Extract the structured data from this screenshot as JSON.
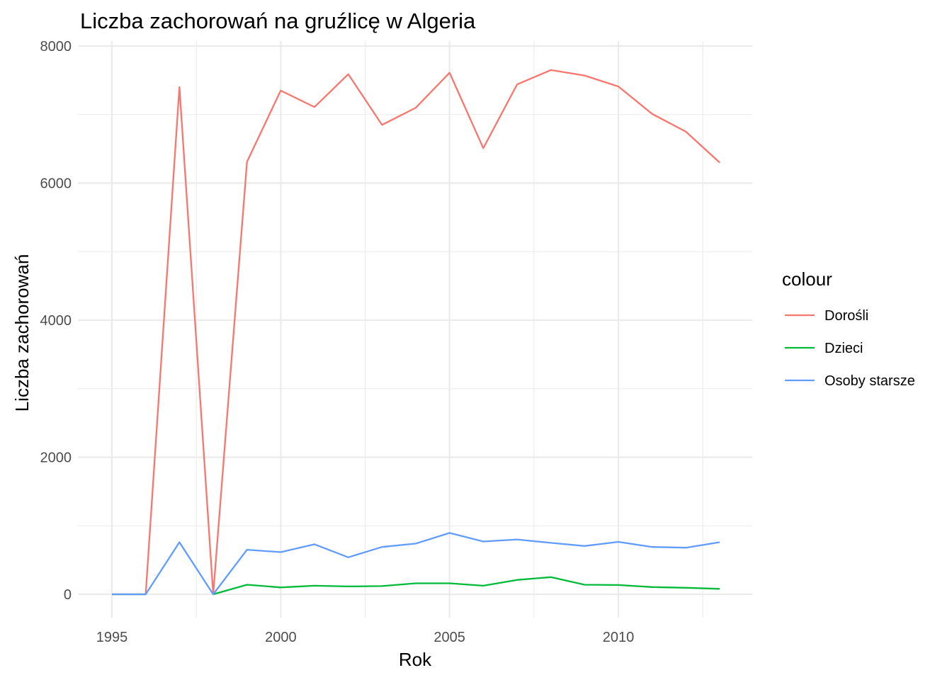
{
  "chart_data": {
    "type": "line",
    "title": "Liczba zachorowań na gruźlicę w Algeria",
    "xlabel": "Rok",
    "ylabel": "Liczba zachorowań",
    "x": [
      1995,
      1996,
      1997,
      1998,
      1999,
      2000,
      2001,
      2002,
      2003,
      2004,
      2005,
      2006,
      2007,
      2008,
      2009,
      2010,
      2011,
      2012,
      2013
    ],
    "xlim": [
      1994.9,
      2013.6
    ],
    "ylim": [
      -300,
      8000
    ],
    "x_ticks": [
      1995,
      2000,
      2005,
      2010
    ],
    "x_tick_labels": [
      "1995",
      "2000",
      "2005",
      "2010"
    ],
    "x_minor_ticks": [
      1997.5,
      2002.5,
      2007.5,
      2012.5
    ],
    "y_ticks": [
      0,
      2000,
      4000,
      6000,
      8000
    ],
    "y_tick_labels": [
      "0",
      "2000",
      "4000",
      "6000",
      "8000"
    ],
    "y_minor_ticks": [
      1000,
      3000,
      5000,
      7000
    ],
    "grid": true,
    "legend": {
      "title": "colour",
      "position": "right"
    },
    "series": [
      {
        "name": "Dorośli",
        "color": "#F8766D",
        "values": [
          0,
          0,
          7400,
          0,
          6310,
          7350,
          7110,
          7590,
          6850,
          7100,
          7610,
          6510,
          7440,
          7650,
          7570,
          7410,
          7010,
          6750,
          6300
        ]
      },
      {
        "name": "Dzieci",
        "color": "#00BA38",
        "values": [
          0,
          0,
          null,
          0,
          140,
          100,
          125,
          115,
          120,
          160,
          160,
          125,
          210,
          250,
          140,
          135,
          105,
          95,
          80
        ]
      },
      {
        "name": "Osoby starsze",
        "color": "#619CFF",
        "values": [
          0,
          0,
          760,
          0,
          650,
          615,
          730,
          540,
          690,
          740,
          895,
          770,
          800,
          750,
          705,
          765,
          690,
          680,
          760
        ]
      }
    ]
  }
}
